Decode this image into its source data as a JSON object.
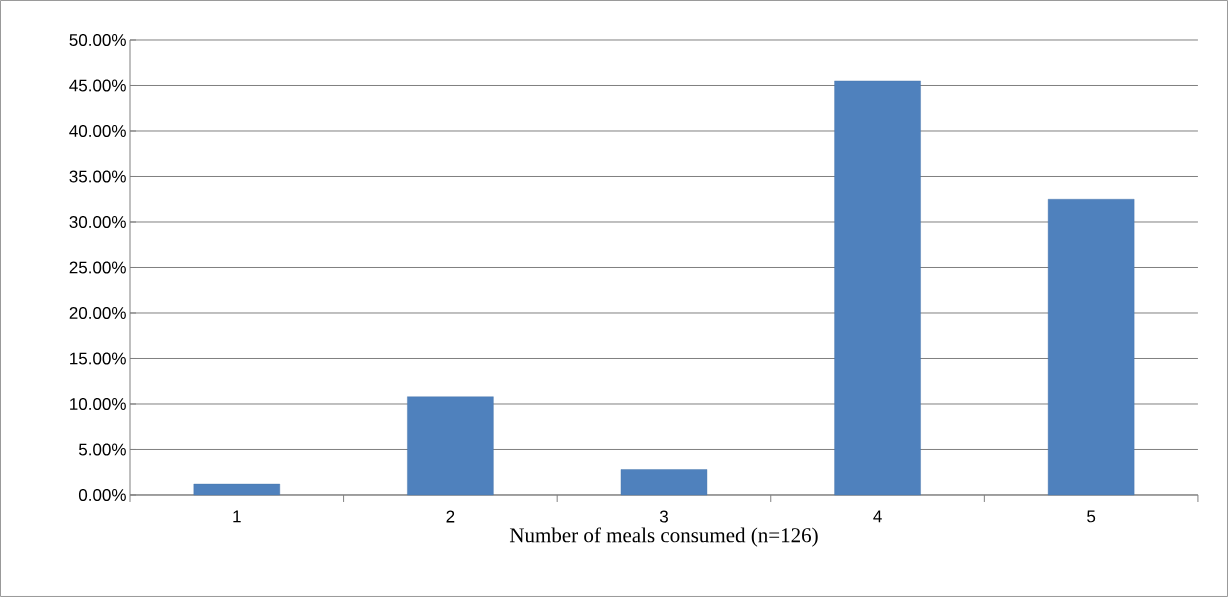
{
  "chart_data": {
    "type": "bar",
    "xlabel": "Number of meals consumed (n=126)",
    "categories": [
      "1",
      "2",
      "3",
      "4",
      "5"
    ],
    "values": [
      1.2,
      10.8,
      2.8,
      45.5,
      32.5
    ],
    "color": "#4f81bd",
    "ylim": [
      0,
      50
    ],
    "yticks": [
      {
        "value": 0,
        "label": "0.00%"
      },
      {
        "value": 5,
        "label": "5.00%"
      },
      {
        "value": 10,
        "label": "10.00%"
      },
      {
        "value": 15,
        "label": "15.00%"
      },
      {
        "value": 20,
        "label": "20.00%"
      },
      {
        "value": 25,
        "label": "25.00%"
      },
      {
        "value": 30,
        "label": "30.00%"
      },
      {
        "value": 35,
        "label": "35.00%"
      },
      {
        "value": 40,
        "label": "40.00%"
      },
      {
        "value": 45,
        "label": "45.00%"
      },
      {
        "value": 50,
        "label": "50.00%"
      }
    ],
    "grid": "y"
  }
}
